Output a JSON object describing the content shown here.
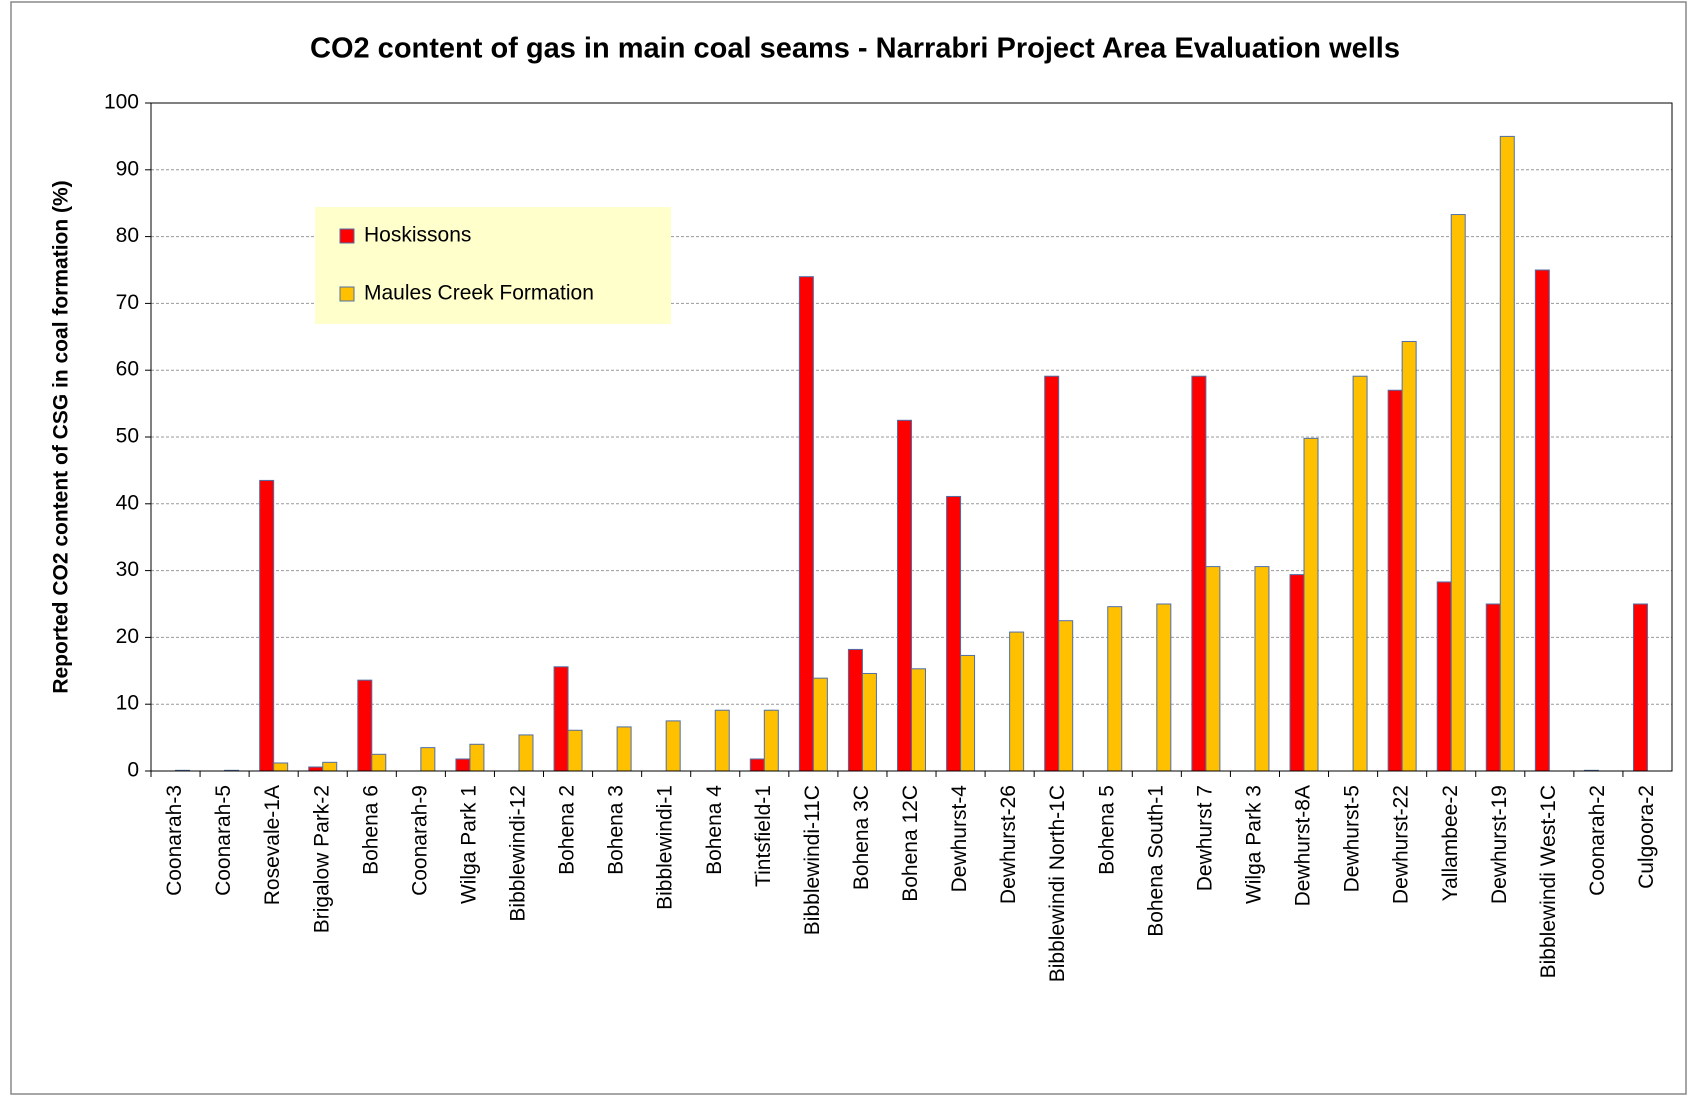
{
  "chart_data": {
    "type": "bar",
    "title": "CO2 content of gas in main coal seams - Narrabri Project Area Evaluation wells",
    "y_label": "Reported CO2 content of CSG in coal formation (%)",
    "categories": [
      "Coonarah-3",
      "Coonarah-5",
      "Rosevale-1A",
      "Brigalow Park-2",
      "Bohena 6",
      "Coonarah-9",
      "Wilga Park 1",
      "Bibblewindi-12",
      "Bohena 2",
      "Bohena 3",
      "Bibblewindi-1",
      "Bohena 4",
      "Tintsfield-1",
      "Bibblewindi-11C",
      "Bohena 3C",
      "Bohena 12C",
      "Dewhurst-4",
      "Dewhurst-26",
      "Bibblewindi North-1C",
      "Bohena 5",
      "Bohena South-1",
      "Dewhurst 7",
      "Wilga Park 3",
      "Dewhurst-8A",
      "Dewhurst-5",
      "Dewhurst-22",
      "Yallambee-2",
      "Dewhurst-19",
      "Bibblewindi West-1C",
      "Coonarah-2",
      "Culgoora-2"
    ],
    "series": [
      {
        "name": "Hoskissons",
        "color": "#ff0000",
        "values": [
          null,
          null,
          43.5,
          0.6,
          13.6,
          null,
          1.8,
          null,
          15.6,
          null,
          null,
          null,
          1.8,
          74,
          18.2,
          52.5,
          41.1,
          null,
          59.1,
          null,
          null,
          59.1,
          null,
          29.4,
          null,
          57,
          28.3,
          25,
          75,
          0.1,
          25
        ]
      },
      {
        "name": "Maules Creek Formation",
        "color": "#ffc000",
        "values": [
          0.1,
          0.1,
          1.2,
          1.3,
          2.5,
          3.5,
          4.0,
          5.4,
          6.1,
          6.6,
          7.5,
          9.1,
          9.1,
          13.9,
          14.6,
          15.3,
          17.3,
          20.8,
          22.5,
          24.6,
          25,
          30.6,
          30.6,
          49.8,
          59.1,
          64.3,
          83.3,
          95,
          null,
          null,
          null
        ]
      }
    ],
    "ylim": [
      0,
      100
    ],
    "yticks": [
      0,
      10,
      20,
      30,
      40,
      50,
      60,
      70,
      80,
      90,
      100
    ],
    "grid": true,
    "legend": "upper left"
  }
}
